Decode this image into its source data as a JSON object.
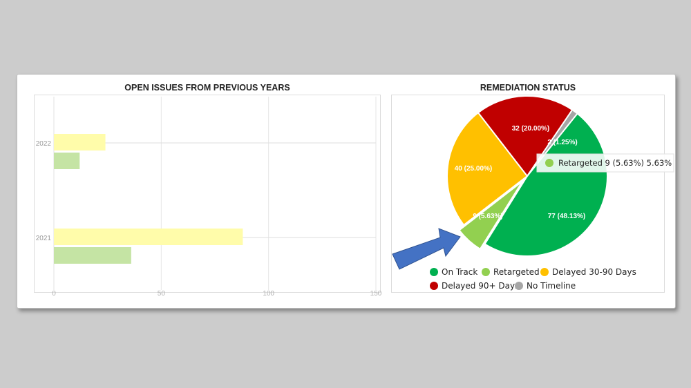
{
  "chart_data": [
    {
      "type": "bar",
      "orientation": "horizontal",
      "title": "OPEN ISSUES FROM PREVIOUS YEARS",
      "categories": [
        "2022",
        "2021"
      ],
      "series": [
        {
          "color": "#fffcaa",
          "values": [
            24,
            88
          ]
        },
        {
          "color": "#c5e4a4",
          "values": [
            12,
            36
          ]
        }
      ],
      "xlim": [
        0,
        150
      ],
      "xticks": [
        "0",
        "50",
        "100",
        "150"
      ],
      "grid": true
    },
    {
      "type": "pie",
      "title": "REMEDIATION STATUS",
      "slices": [
        {
          "name": "On Track",
          "value": 77,
          "label": "77 (48.13%)",
          "color": "#00b050"
        },
        {
          "name": "Retargeted",
          "value": 9,
          "label": "9 (5.63%)",
          "color": "#92d050"
        },
        {
          "name": "Delayed 30-90 Days",
          "value": 40,
          "label": "40 (25.00%)",
          "color": "#ffc000"
        },
        {
          "name": "Delayed 90+ Days",
          "value": 32,
          "label": "32 (20.00%)",
          "color": "#c00000"
        },
        {
          "name": "No Timeline",
          "value": 2,
          "label": "2 (1.25%)",
          "color": "#a6a6a6"
        }
      ],
      "legend_placement": "bottom",
      "tooltip": {
        "name": "Retargeted",
        "value": "9 (5.63%)",
        "percent": "5.63%"
      }
    }
  ],
  "annotation": {
    "arrow_color": "#4472c4",
    "arrow_target": "Retargeted"
  }
}
